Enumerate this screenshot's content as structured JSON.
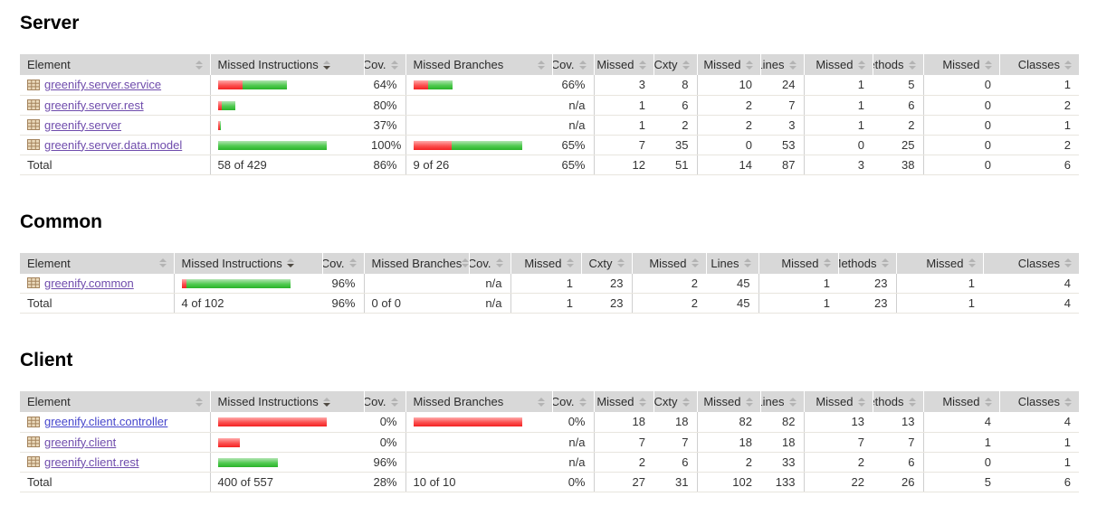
{
  "report": {
    "columns": [
      "Element",
      "Missed Instructions",
      "Cov.",
      "Missed Branches",
      "Cov.",
      "Missed",
      "Cxty",
      "Missed",
      "Lines",
      "Missed",
      "Methods",
      "Missed",
      "Classes"
    ],
    "sorted_column": "Missed Instructions",
    "sort_direction": "desc",
    "colors": {
      "header_bg": "#d8d8d8",
      "bar_red": "#f42222",
      "bar_green": "#2ab32a",
      "link_visited": "#6f4cac",
      "link_unvisited": "#4545cc"
    },
    "sections": [
      {
        "title": "Server",
        "rows": [
          {
            "element": "greenify.server.service",
            "visited": true,
            "instr_bar": {
              "red": 27,
              "green": 49
            },
            "instr_cov": "64%",
            "branch_bar": {
              "red": 16,
              "green": 27
            },
            "branch_cov": "66%",
            "cells": [
              "3",
              "8",
              "10",
              "24",
              "1",
              "5",
              "0",
              "1"
            ]
          },
          {
            "element": "greenify.server.rest",
            "visited": true,
            "instr_bar": {
              "red": 4,
              "green": 15
            },
            "instr_cov": "80%",
            "branch_bar": null,
            "branch_cov": "n/a",
            "cells": [
              "1",
              "6",
              "2",
              "7",
              "1",
              "6",
              "0",
              "2"
            ]
          },
          {
            "element": "greenify.server",
            "visited": true,
            "instr_bar": {
              "red": 2,
              "green": 1
            },
            "instr_cov": "37%",
            "branch_bar": null,
            "branch_cov": "n/a",
            "cells": [
              "1",
              "2",
              "2",
              "3",
              "1",
              "2",
              "0",
              "1"
            ]
          },
          {
            "element": "greenify.server.data.model",
            "visited": true,
            "instr_bar": {
              "red": 0,
              "green": 120
            },
            "instr_cov": "100%",
            "branch_bar": {
              "red": 42,
              "green": 78
            },
            "branch_cov": "65%",
            "cells": [
              "7",
              "35",
              "0",
              "53",
              "0",
              "25",
              "0",
              "2"
            ]
          }
        ],
        "total": {
          "label": "Total",
          "instructions": "58 of 429",
          "instr_cov": "86%",
          "branches": "9 of 26",
          "branch_cov": "65%",
          "cells": [
            "12",
            "51",
            "14",
            "87",
            "3",
            "38",
            "0",
            "6"
          ]
        }
      },
      {
        "title": "Common",
        "rows": [
          {
            "element": "greenify.common",
            "visited": true,
            "instr_bar": {
              "red": 5,
              "green": 115
            },
            "instr_cov": "96%",
            "branch_bar": null,
            "branch_cov": "n/a",
            "cells": [
              "1",
              "23",
              "2",
              "45",
              "1",
              "23",
              "1",
              "4"
            ]
          }
        ],
        "total": {
          "label": "Total",
          "instructions": "4 of 102",
          "instr_cov": "96%",
          "branches": "0 of 0",
          "branch_cov": "n/a",
          "cells": [
            "1",
            "23",
            "2",
            "45",
            "1",
            "23",
            "1",
            "4"
          ]
        }
      },
      {
        "title": "Client",
        "rows": [
          {
            "element": "greenify.client.controller",
            "visited": false,
            "instr_bar": {
              "red": 120,
              "green": 0
            },
            "instr_cov": "0%",
            "branch_bar": {
              "red": 120,
              "green": 0
            },
            "branch_cov": "0%",
            "cells": [
              "18",
              "18",
              "82",
              "82",
              "13",
              "13",
              "4",
              "4"
            ]
          },
          {
            "element": "greenify.client",
            "visited": true,
            "instr_bar": {
              "red": 24,
              "green": 0
            },
            "instr_cov": "0%",
            "branch_bar": null,
            "branch_cov": "n/a",
            "cells": [
              "7",
              "7",
              "18",
              "18",
              "7",
              "7",
              "1",
              "1"
            ]
          },
          {
            "element": "greenify.client.rest",
            "visited": true,
            "instr_bar": {
              "red": 0,
              "green": 66
            },
            "instr_cov": "96%",
            "branch_bar": null,
            "branch_cov": "n/a",
            "cells": [
              "2",
              "6",
              "2",
              "33",
              "2",
              "6",
              "0",
              "1"
            ]
          }
        ],
        "total": {
          "label": "Total",
          "instructions": "400 of 557",
          "instr_cov": "28%",
          "branches": "10 of 10",
          "branch_cov": "0%",
          "cells": [
            "27",
            "31",
            "102",
            "133",
            "22",
            "26",
            "5",
            "6"
          ]
        }
      }
    ]
  }
}
